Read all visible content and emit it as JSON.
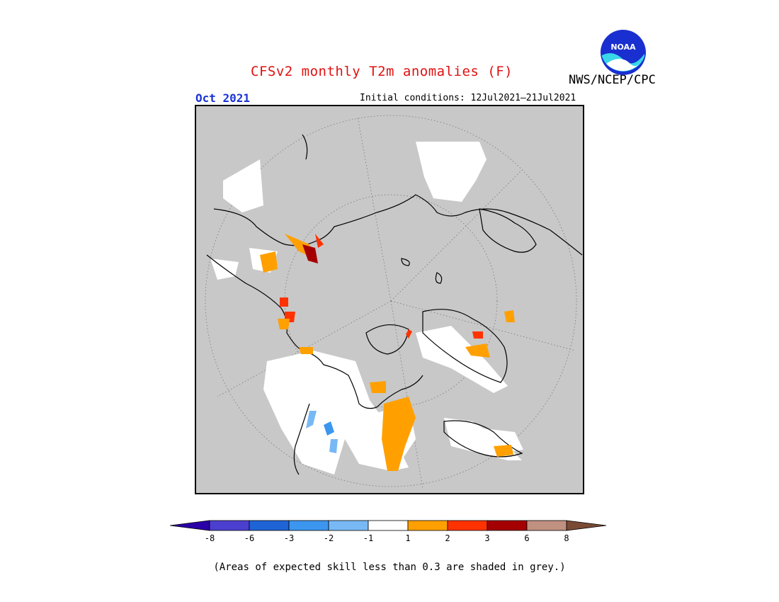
{
  "header": {
    "title": "CFSv2 monthly T2m anomalies (F)",
    "agency": "NWS/NCEP/CPC",
    "logo_text": "NOAA"
  },
  "subheader": {
    "month": "Oct 2021",
    "initial_conditions": "Initial conditions: 12Jul2021–21Jul2021"
  },
  "map": {
    "projection": "north-polar-stereographic",
    "background_color": "#c8c8c8",
    "grey_meaning": "skill < 0.3"
  },
  "legend": {
    "ticks": [
      "-8",
      "-6",
      "-3",
      "-2",
      "-1",
      "1",
      "2",
      "3",
      "6",
      "8"
    ],
    "colors": [
      "#2a00a8",
      "#4b3fd0",
      "#1f64d6",
      "#3c96f0",
      "#78b9f5",
      "#ffffff",
      "#ffa000",
      "#ff3200",
      "#a50000",
      "#c09080",
      "#7a4a35"
    ]
  },
  "footnote": "(Areas of expected skill less than 0.3 are shaded in grey.)"
}
